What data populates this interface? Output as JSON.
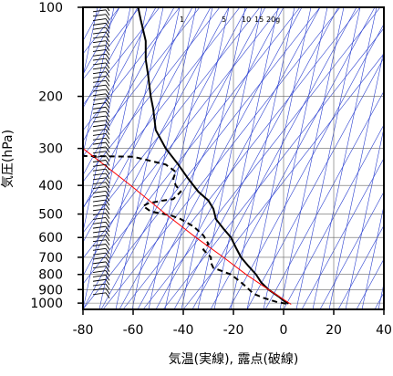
{
  "chart_data": {
    "type": "line",
    "title": "",
    "xlabel": "気温(実線), 露点(破線)",
    "ylabel": "気圧(hPa)",
    "xlim": [
      -80,
      40
    ],
    "ylim": [
      1050,
      100
    ],
    "y_scale": "log",
    "x_ticks": [
      -80,
      -60,
      -40,
      -20,
      0,
      20,
      40
    ],
    "x_tick_labels": [
      "-80",
      "-60",
      "-40",
      "-20",
      "0",
      "20",
      "40"
    ],
    "y_ticks": [
      100,
      200,
      300,
      400,
      500,
      600,
      700,
      800,
      900,
      1000
    ],
    "y_tick_labels": [
      "100",
      "200",
      "300",
      "400",
      "500",
      "600",
      "700",
      "800",
      "900",
      "1000"
    ],
    "grid": true,
    "mixing_ratio_labels": [
      "1",
      "5",
      "10",
      "15",
      "20g"
    ],
    "series": [
      {
        "style": "solid",
        "color": "#000000",
        "points": [
          {
            "p": 1005,
            "t": 2
          },
          {
            "p": 980,
            "t": 0
          },
          {
            "p": 950,
            "t": -2
          },
          {
            "p": 900,
            "t": -6
          },
          {
            "p": 850,
            "t": -9
          },
          {
            "p": 800,
            "t": -11
          },
          {
            "p": 750,
            "t": -14
          },
          {
            "p": 700,
            "t": -17
          },
          {
            "p": 650,
            "t": -19
          },
          {
            "p": 600,
            "t": -21
          },
          {
            "p": 560,
            "t": -24
          },
          {
            "p": 520,
            "t": -27
          },
          {
            "p": 480,
            "t": -28
          },
          {
            "p": 450,
            "t": -30
          },
          {
            "p": 420,
            "t": -34
          },
          {
            "p": 380,
            "t": -38
          },
          {
            "p": 340,
            "t": -42
          },
          {
            "p": 300,
            "t": -47
          },
          {
            "p": 260,
            "t": -51
          },
          {
            "p": 220,
            "t": -52
          },
          {
            "p": 200,
            "t": -53
          },
          {
            "p": 170,
            "t": -54
          },
          {
            "p": 150,
            "t": -55
          },
          {
            "p": 130,
            "t": -55
          },
          {
            "p": 110,
            "t": -57
          },
          {
            "p": 100,
            "t": -58
          }
        ]
      },
      {
        "style": "dashed",
        "color": "#000000",
        "points": [
          {
            "p": 1005,
            "t": 1
          },
          {
            "p": 990,
            "t": -3
          },
          {
            "p": 960,
            "t": -8
          },
          {
            "p": 930,
            "t": -12
          },
          {
            "p": 880,
            "t": -15
          },
          {
            "p": 850,
            "t": -17
          },
          {
            "p": 800,
            "t": -21
          },
          {
            "p": 760,
            "t": -28
          },
          {
            "p": 730,
            "t": -29
          },
          {
            "p": 700,
            "t": -29
          },
          {
            "p": 660,
            "t": -32
          },
          {
            "p": 630,
            "t": -30
          },
          {
            "p": 590,
            "t": -32
          },
          {
            "p": 550,
            "t": -36
          },
          {
            "p": 520,
            "t": -41
          },
          {
            "p": 505,
            "t": -45
          },
          {
            "p": 490,
            "t": -53
          },
          {
            "p": 470,
            "t": -56
          },
          {
            "p": 460,
            "t": -54
          },
          {
            "p": 450,
            "t": -48
          },
          {
            "p": 445,
            "t": -44
          },
          {
            "p": 420,
            "t": -41
          },
          {
            "p": 400,
            "t": -43
          },
          {
            "p": 380,
            "t": -44
          },
          {
            "p": 360,
            "t": -43
          },
          {
            "p": 340,
            "t": -47
          },
          {
            "p": 320,
            "t": -60
          },
          {
            "p": 318,
            "t": -80
          }
        ]
      },
      {
        "style": "solid",
        "color": "#ff0000",
        "points": [
          {
            "p": 1010,
            "t": 3
          },
          {
            "p": 900,
            "t": -6
          },
          {
            "p": 800,
            "t": -15
          },
          {
            "p": 700,
            "t": -24
          },
          {
            "p": 600,
            "t": -35
          },
          {
            "p": 500,
            "t": -47
          },
          {
            "p": 400,
            "t": -61
          },
          {
            "p": 300,
            "t": -80
          }
        ]
      }
    ]
  }
}
